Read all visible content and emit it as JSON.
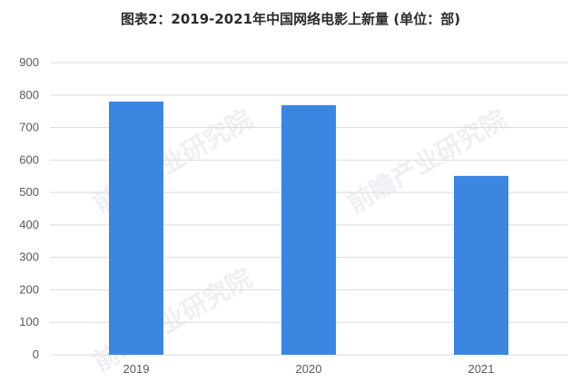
{
  "chart_data": {
    "type": "bar",
    "title": "图表2：2019-2021年中国网络电影上新量 (单位：部)",
    "categories": [
      "2019",
      "2020",
      "2021"
    ],
    "values": [
      780,
      769,
      551
    ],
    "ylim": [
      0,
      900
    ],
    "yticks": [
      0,
      100,
      200,
      300,
      400,
      500,
      600,
      700,
      800,
      900
    ],
    "grid": true,
    "legend": "none",
    "bar_color": "#3b86e1",
    "grid_color": "#dcdcdc"
  },
  "watermarks": [
    "前瞻产业研究院",
    "前瞻产业研究院",
    "前瞻产业研究院"
  ]
}
